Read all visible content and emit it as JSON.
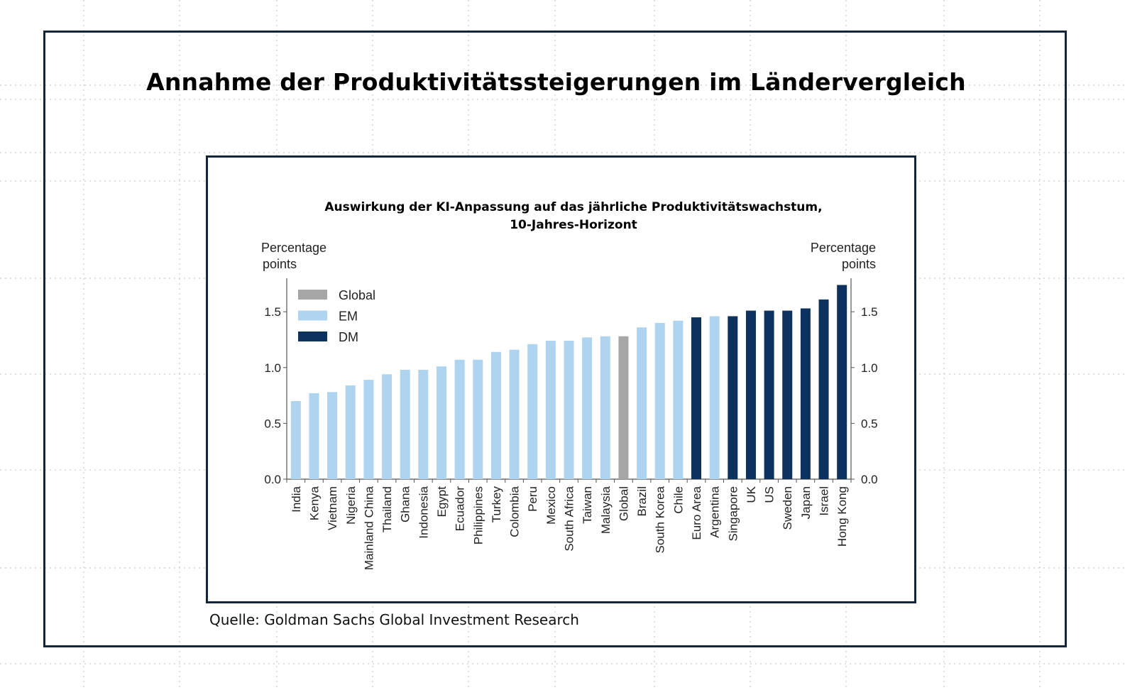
{
  "slide": {
    "title": "Annahme der Produktivitätssteigerungen im Ländervergleich",
    "source": "Quelle: Goldman Sachs Global Investment Research"
  },
  "colors": {
    "Global": "#a6a6a6",
    "EM": "#aed4f0",
    "DM": "#0c325d",
    "frame": "#14263a"
  },
  "chart_data": {
    "type": "bar",
    "title_line1": "Auswirkung der KI-Anpassung auf das jährliche Produktivitätswachstum,",
    "title_line2": "10-Jahres-Horizont",
    "ylabel_left_line1": "Percentage",
    "ylabel_left_line2": "points",
    "ylabel_right_line1": "Percentage",
    "ylabel_right_line2": "points",
    "ylim": [
      0,
      1.8
    ],
    "yticks": [
      "0.0",
      "0.5",
      "1.0",
      "1.5"
    ],
    "legend_position": "top-left",
    "legend": [
      "Global",
      "EM",
      "DM"
    ],
    "categories": [
      "India",
      "Kenya",
      "Vietnam",
      "Nigeria",
      "Mainland China",
      "Thailand",
      "Ghana",
      "Indonesia",
      "Egypt",
      "Ecuador",
      "Philippines",
      "Turkey",
      "Colombia",
      "Peru",
      "Mexico",
      "South Africa",
      "Taiwan",
      "Malaysia",
      "Global",
      "Brazil",
      "South Korea",
      "Chile",
      "Euro Area",
      "Argentina",
      "Singapore",
      "UK",
      "US",
      "Sweden",
      "Japan",
      "Israel",
      "Hong Kong"
    ],
    "groups": [
      "EM",
      "EM",
      "EM",
      "EM",
      "EM",
      "EM",
      "EM",
      "EM",
      "EM",
      "EM",
      "EM",
      "EM",
      "EM",
      "EM",
      "EM",
      "EM",
      "EM",
      "EM",
      "Global",
      "EM",
      "EM",
      "EM",
      "DM",
      "EM",
      "DM",
      "DM",
      "DM",
      "DM",
      "DM",
      "DM",
      "DM"
    ],
    "values": [
      0.7,
      0.77,
      0.78,
      0.84,
      0.89,
      0.94,
      0.98,
      0.98,
      1.01,
      1.07,
      1.07,
      1.14,
      1.16,
      1.21,
      1.24,
      1.24,
      1.27,
      1.28,
      1.28,
      1.36,
      1.4,
      1.42,
      1.45,
      1.46,
      1.46,
      1.51,
      1.51,
      1.51,
      1.53,
      1.61,
      1.74
    ]
  }
}
